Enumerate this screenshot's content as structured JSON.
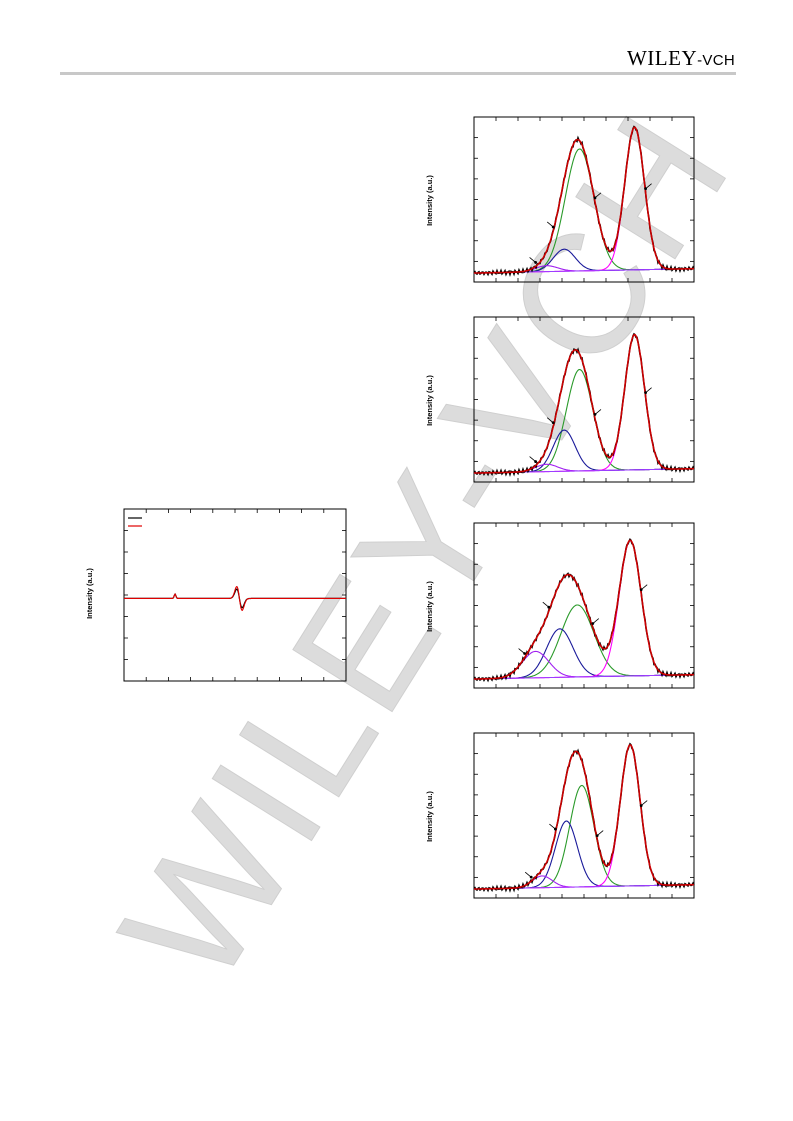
{
  "header": {
    "brand_main": "Wiley",
    "brand_sub": "-VCH",
    "brand_display_main": "WILEY",
    "brand_display_sub": "-VCH",
    "rule_color": "#c8c8c8"
  },
  "watermark": {
    "text": "WILEY-VCH",
    "color": "#d9d9d9"
  },
  "colors": {
    "measured": "#000000",
    "fit": "#e00000",
    "peak_a": "#2a9a2a",
    "peak_b": "#1a1a9a",
    "peak_c": "#a020f0",
    "peak_d": "#ff00ff",
    "baseline": "#9a40ff"
  },
  "chart_data": [
    {
      "type": "line",
      "id": "epr",
      "ylabel": "Intensity (a.u.)",
      "legend_placement": "top-left",
      "series": [
        {
          "color": "#000000"
        },
        {
          "color": "#e00000"
        }
      ]
    },
    {
      "type": "line",
      "id": "xps-1",
      "ylabel": "Intensity (a.u.)",
      "peaks": [
        {
          "center": 0.48,
          "width": 0.065,
          "height": 0.83,
          "color": "#2a9a2a"
        },
        {
          "center": 0.41,
          "width": 0.05,
          "height": 0.15,
          "color": "#1a1a9a"
        },
        {
          "center": 0.33,
          "width": 0.05,
          "height": 0.04,
          "color": "#a020f0"
        },
        {
          "center": 0.73,
          "width": 0.045,
          "height": 0.97,
          "color": "#ff00ff"
        }
      ]
    },
    {
      "type": "line",
      "id": "xps-2",
      "ylabel": "Intensity (a.u.)",
      "peaks": [
        {
          "center": 0.48,
          "width": 0.06,
          "height": 0.69,
          "color": "#2a9a2a"
        },
        {
          "center": 0.41,
          "width": 0.05,
          "height": 0.28,
          "color": "#1a1a9a"
        },
        {
          "center": 0.33,
          "width": 0.05,
          "height": 0.05,
          "color": "#a020f0"
        },
        {
          "center": 0.73,
          "width": 0.045,
          "height": 0.92,
          "color": "#ff00ff"
        }
      ]
    },
    {
      "type": "line",
      "id": "xps-3",
      "ylabel": "Intensity (a.u.)",
      "peaks": [
        {
          "center": 0.47,
          "width": 0.075,
          "height": 0.49,
          "color": "#2a9a2a"
        },
        {
          "center": 0.39,
          "width": 0.06,
          "height": 0.33,
          "color": "#1a1a9a"
        },
        {
          "center": 0.28,
          "width": 0.06,
          "height": 0.18,
          "color": "#a020f0"
        },
        {
          "center": 0.71,
          "width": 0.05,
          "height": 0.92,
          "color": "#ff00ff"
        }
      ]
    },
    {
      "type": "line",
      "id": "xps-4",
      "ylabel": "Intensity (a.u.)",
      "peaks": [
        {
          "center": 0.49,
          "width": 0.055,
          "height": 0.69,
          "color": "#2a9a2a"
        },
        {
          "center": 0.42,
          "width": 0.05,
          "height": 0.45,
          "color": "#1a1a9a"
        },
        {
          "center": 0.31,
          "width": 0.045,
          "height": 0.08,
          "color": "#a020f0"
        },
        {
          "center": 0.71,
          "width": 0.045,
          "height": 0.96,
          "color": "#ff00ff"
        }
      ]
    }
  ]
}
